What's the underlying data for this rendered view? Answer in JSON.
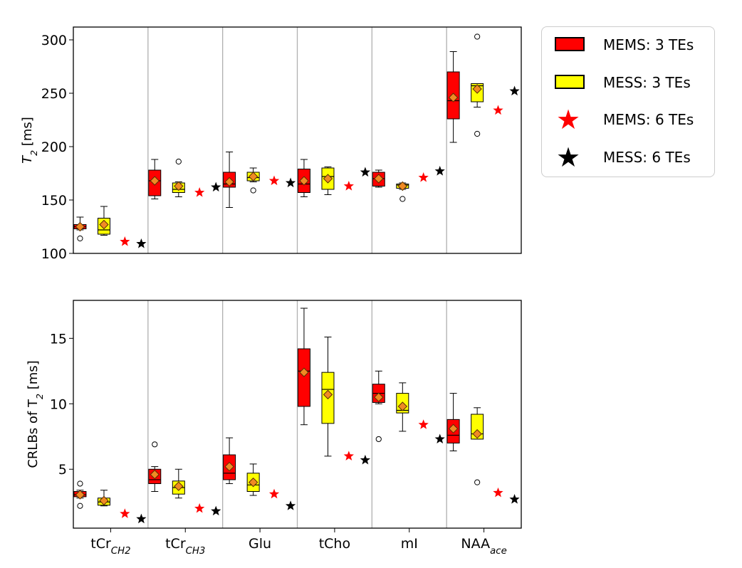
{
  "legend": {
    "items": [
      {
        "label": "MEMS: 3 TEs",
        "kind": "box",
        "color": "#ff0000"
      },
      {
        "label": "MESS: 3 TEs",
        "kind": "box",
        "color": "#ffff00"
      },
      {
        "label": "MEMS: 6 TEs",
        "kind": "star",
        "color": "#ff0000"
      },
      {
        "label": "MESS: 6 TEs",
        "kind": "star",
        "color": "#000000"
      }
    ]
  },
  "chart_data": [
    {
      "type": "box",
      "ylabel": {
        "base": "T",
        "sub": "2",
        "rest": " [ms]"
      },
      "ylim": [
        100,
        312
      ],
      "yticks": [
        "100",
        "150",
        "200",
        "250",
        "300"
      ],
      "categories": [
        {
          "base": "tCr",
          "sub": "CH2"
        },
        {
          "base": "tCr",
          "sub": "CH3"
        },
        {
          "base": "Glu",
          "sub": ""
        },
        {
          "base": "tCho",
          "sub": ""
        },
        {
          "base": "mI",
          "sub": ""
        },
        {
          "base": "NAA",
          "sub": "ace"
        }
      ],
      "series": [
        {
          "name": "MEMS: 3 TEs",
          "color": "#ff0000",
          "boxes": [
            {
              "whislo": 122,
              "q1": 123,
              "med": 125,
              "q3": 127,
              "whishi": 134,
              "mean": 125,
              "fliers": [
                114
              ]
            },
            {
              "whislo": 151,
              "q1": 154,
              "med": 168,
              "q3": 178,
              "whishi": 188,
              "mean": 168,
              "fliers": []
            },
            {
              "whislo": 143,
              "q1": 162,
              "med": 165,
              "q3": 176,
              "whishi": 195,
              "mean": 167,
              "fliers": []
            },
            {
              "whislo": 153,
              "q1": 157,
              "med": 165,
              "q3": 179,
              "whishi": 188,
              "mean": 168,
              "fliers": []
            },
            {
              "whislo": 162,
              "q1": 163,
              "med": 170,
              "q3": 176,
              "whishi": 178,
              "mean": 170,
              "fliers": []
            },
            {
              "whislo": 204,
              "q1": 226,
              "med": 243,
              "q3": 270,
              "whishi": 289,
              "mean": 246,
              "fliers": []
            }
          ]
        },
        {
          "name": "MESS: 3 TEs",
          "color": "#ffff00",
          "boxes": [
            {
              "whislo": 117,
              "q1": 118,
              "med": 122,
              "q3": 133,
              "whishi": 144,
              "mean": 127,
              "fliers": []
            },
            {
              "whislo": 153,
              "q1": 157,
              "med": 160,
              "q3": 166,
              "whishi": 167,
              "mean": 163,
              "fliers": [
                186
              ]
            },
            {
              "whislo": 167,
              "q1": 168,
              "med": 171,
              "q3": 176,
              "whishi": 180,
              "mean": 172,
              "fliers": [
                159
              ]
            },
            {
              "whislo": 155,
              "q1": 160,
              "med": 172,
              "q3": 180,
              "whishi": 181,
              "mean": 170,
              "fliers": []
            },
            {
              "whislo": 160,
              "q1": 161,
              "med": 164,
              "q3": 165,
              "whishi": 166,
              "mean": 163,
              "fliers": [
                151
              ]
            },
            {
              "whislo": 237,
              "q1": 242,
              "med": 257,
              "q3": 259,
              "whishi": 259,
              "mean": 254,
              "fliers": [
                303,
                212
              ]
            }
          ]
        }
      ],
      "stars": [
        {
          "name": "MEMS: 6 TEs",
          "color": "#ff0000",
          "values": [
            111,
            157,
            168,
            163,
            171,
            234
          ]
        },
        {
          "name": "MESS: 6 TEs",
          "color": "#000000",
          "values": [
            109,
            162,
            166,
            176,
            177,
            252
          ]
        }
      ]
    },
    {
      "type": "box",
      "ylabel": {
        "base": "CRLBs of T",
        "sub": "2",
        "rest": " [ms]"
      },
      "ylim": [
        0.5,
        17.9
      ],
      "yticks": [
        "5",
        "10",
        "15"
      ],
      "categories": [
        {
          "base": "tCr",
          "sub": "CH2"
        },
        {
          "base": "tCr",
          "sub": "CH3"
        },
        {
          "base": "Glu",
          "sub": ""
        },
        {
          "base": "tCho",
          "sub": ""
        },
        {
          "base": "mI",
          "sub": ""
        },
        {
          "base": "NAA",
          "sub": "ace"
        }
      ],
      "series": [
        {
          "name": "MEMS: 3 TEs",
          "color": "#ff0000",
          "boxes": [
            {
              "whislo": 2.8,
              "q1": 2.9,
              "med": 3.05,
              "q3": 3.3,
              "whishi": 3.4,
              "mean": 3.05,
              "fliers": [
                3.9,
                2.2
              ]
            },
            {
              "whislo": 3.3,
              "q1": 3.9,
              "med": 4.2,
              "q3": 5.0,
              "whishi": 5.2,
              "mean": 4.6,
              "fliers": [
                6.9
              ]
            },
            {
              "whislo": 3.9,
              "q1": 4.2,
              "med": 4.7,
              "q3": 6.1,
              "whishi": 7.4,
              "mean": 5.2,
              "fliers": []
            },
            {
              "whislo": 8.4,
              "q1": 9.8,
              "med": 12.5,
              "q3": 14.2,
              "whishi": 17.3,
              "mean": 12.4,
              "fliers": []
            },
            {
              "whislo": 10.0,
              "q1": 10.1,
              "med": 10.8,
              "q3": 11.5,
              "whishi": 12.5,
              "mean": 10.5,
              "fliers": [
                7.3
              ]
            },
            {
              "whislo": 6.4,
              "q1": 7.0,
              "med": 7.6,
              "q3": 8.8,
              "whishi": 10.8,
              "mean": 8.1,
              "fliers": []
            }
          ]
        },
        {
          "name": "MESS: 3 TEs",
          "color": "#ffff00",
          "boxes": [
            {
              "whislo": 2.2,
              "q1": 2.25,
              "med": 2.5,
              "q3": 2.8,
              "whishi": 3.4,
              "mean": 2.6,
              "fliers": []
            },
            {
              "whislo": 2.8,
              "q1": 3.1,
              "med": 3.6,
              "q3": 4.1,
              "whishi": 5.0,
              "mean": 3.7,
              "fliers": []
            },
            {
              "whislo": 3.0,
              "q1": 3.3,
              "med": 3.8,
              "q3": 4.7,
              "whishi": 5.4,
              "mean": 4.0,
              "fliers": []
            },
            {
              "whislo": 6.0,
              "q1": 8.5,
              "med": 11.1,
              "q3": 12.4,
              "whishi": 15.1,
              "mean": 10.7,
              "fliers": []
            },
            {
              "whislo": 7.9,
              "q1": 9.3,
              "med": 9.5,
              "q3": 10.8,
              "whishi": 11.6,
              "mean": 9.8,
              "fliers": []
            },
            {
              "whislo": 7.3,
              "q1": 7.3,
              "med": 7.7,
              "q3": 9.2,
              "whishi": 9.7,
              "mean": 7.7,
              "fliers": [
                4.0
              ]
            }
          ]
        }
      ],
      "stars": [
        {
          "name": "MEMS: 6 TEs",
          "color": "#ff0000",
          "values": [
            1.6,
            2.0,
            3.1,
            6.0,
            8.4,
            3.2
          ]
        },
        {
          "name": "MESS: 6 TEs",
          "color": "#000000",
          "values": [
            1.2,
            1.8,
            2.2,
            5.7,
            7.3,
            2.7
          ]
        }
      ]
    }
  ]
}
